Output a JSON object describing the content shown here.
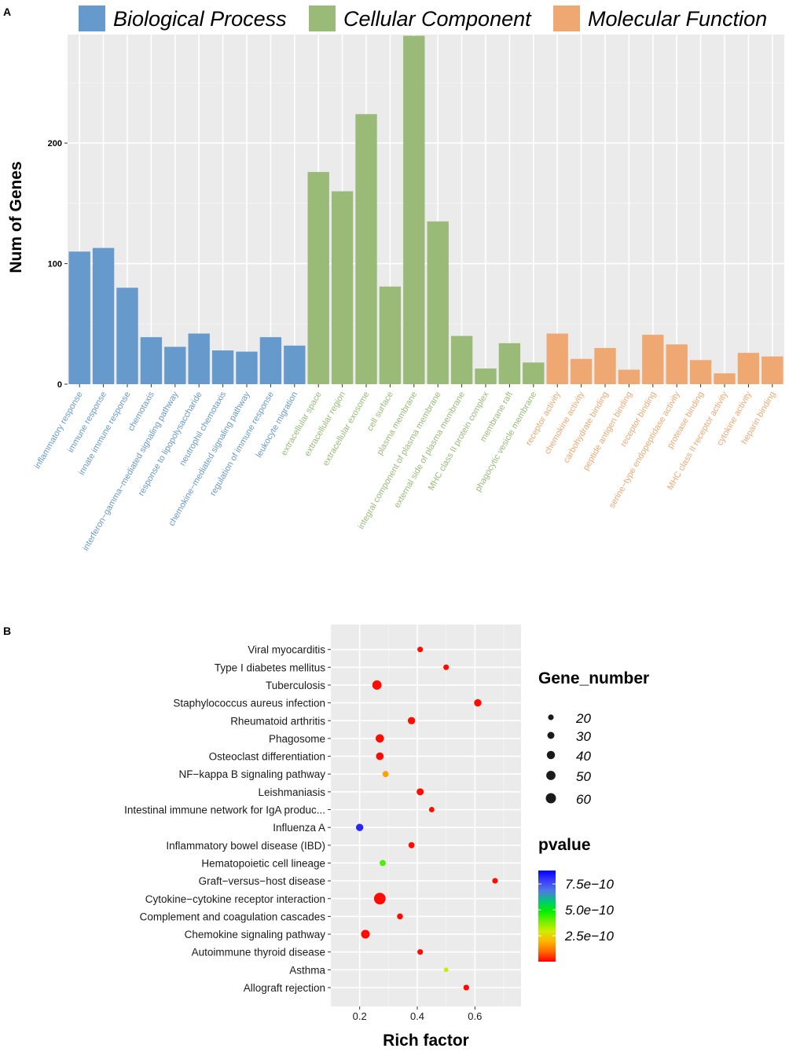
{
  "panel_a_label": "A",
  "panel_b_label": "B",
  "chart_data": [
    {
      "type": "bar",
      "panel": "A",
      "ylabel": "Num of Genes",
      "xlabel": "",
      "ylim": [
        0,
        290
      ],
      "yticks": [
        0,
        100,
        200
      ],
      "grid": true,
      "legend_position": "top",
      "groups": [
        {
          "name": "Biological Process",
          "color": "#6699CC"
        },
        {
          "name": "Cellular Component",
          "color": "#99BB77"
        },
        {
          "name": "Molecular Function",
          "color": "#F0A872"
        }
      ],
      "categories": [
        "inflammatory response",
        "immune response",
        "innate immune response",
        "chemotaxis",
        "interferon−gamma−mediated signaling pathway",
        "response to lipopolysaccharide",
        "neutrophil chemotaxis",
        "chemokine−mediated signaling pathway",
        "regulation of immune response",
        "leukocyte migration",
        "extracellular space",
        "extracellular region",
        "extracellular exosome",
        "cell surface",
        "plasma membrane",
        "integral component of plasma membrane",
        "external side of plasma membrane",
        "MHC class II protein complex",
        "membrane raft",
        "phagocytic vesicle membrane",
        "receptor activity",
        "chemokine activity",
        "carbohydrate binding",
        "peptide antigen binding",
        "receptor binding",
        "serine−type endopeptidase activity",
        "protease binding",
        "MHC class II receptor activity",
        "cytokine activity",
        "heparin binding"
      ],
      "category_group": [
        0,
        0,
        0,
        0,
        0,
        0,
        0,
        0,
        0,
        0,
        1,
        1,
        1,
        1,
        1,
        1,
        1,
        1,
        1,
        1,
        2,
        2,
        2,
        2,
        2,
        2,
        2,
        2,
        2,
        2
      ],
      "values": [
        110,
        113,
        80,
        39,
        31,
        42,
        28,
        27,
        39,
        32,
        176,
        160,
        224,
        81,
        289,
        135,
        40,
        13,
        34,
        18,
        42,
        21,
        30,
        12,
        41,
        33,
        20,
        9,
        26,
        23
      ]
    },
    {
      "type": "scatter",
      "panel": "B",
      "xlabel": "Rich factor",
      "ylabel": "",
      "xlim": [
        0.1,
        0.76
      ],
      "xticks": [
        0.2,
        0.4,
        0.6
      ],
      "xtick_labels": [
        "0.2",
        "0.4",
        "0.6"
      ],
      "grid": true,
      "categories": [
        "Allograft rejection",
        "Asthma",
        "Autoimmune thyroid disease",
        "Chemokine signaling pathway",
        "Complement and coagulation cascades",
        "Cytokine−cytokine receptor interaction",
        "Graft−versus−host disease",
        "Hematopoietic cell lineage",
        "Inflammatory bowel disease (IBD)",
        "Influenza A",
        "Intestinal immune network for IgA produc...",
        "Leishmaniasis",
        "NF−kappa B signaling pathway",
        "Osteoclast differentiation",
        "Phagosome",
        "Rheumatoid arthritis",
        "Staphylococcus aureus infection",
        "Tuberculosis",
        "Type I diabetes mellitus",
        "Viral myocarditis"
      ],
      "rich_factor": [
        0.57,
        0.5,
        0.41,
        0.22,
        0.34,
        0.27,
        0.67,
        0.28,
        0.38,
        0.2,
        0.45,
        0.41,
        0.29,
        0.27,
        0.27,
        0.38,
        0.61,
        0.26,
        0.5,
        0.41
      ],
      "gene_number": [
        18,
        12,
        17,
        38,
        19,
        66,
        17,
        20,
        20,
        28,
        16,
        26,
        20,
        30,
        35,
        28,
        28,
        43,
        17,
        17
      ],
      "pvalue": [
        1e-11,
        3e-10,
        1e-11,
        1e-11,
        1e-11,
        1e-11,
        1e-11,
        4.2e-10,
        1e-11,
        8.2e-10,
        1e-11,
        1e-11,
        1.7e-10,
        1e-11,
        1e-11,
        1e-11,
        1e-11,
        1e-11,
        1e-11,
        1e-11
      ],
      "size_legend": {
        "title": "Gene_number",
        "values": [
          20,
          30,
          40,
          50,
          60
        ],
        "labels": [
          "20",
          "30",
          "40",
          "50",
          "60"
        ]
      },
      "color_legend": {
        "title": "pvalue",
        "tick_values": [
          7.5e-10,
          5e-10,
          2.5e-10
        ],
        "tick_labels": [
          "7.5e−10",
          "5.0e−10",
          "2.5e−10"
        ],
        "range": [
          0,
          8.8e-10
        ],
        "colors": [
          "#FF0000",
          "#FF6A00",
          "#FFB400",
          "#D2EC00",
          "#6EF000",
          "#00F000",
          "#00C878",
          "#5078E6",
          "#3C3CFF",
          "#0000FF"
        ]
      }
    }
  ]
}
